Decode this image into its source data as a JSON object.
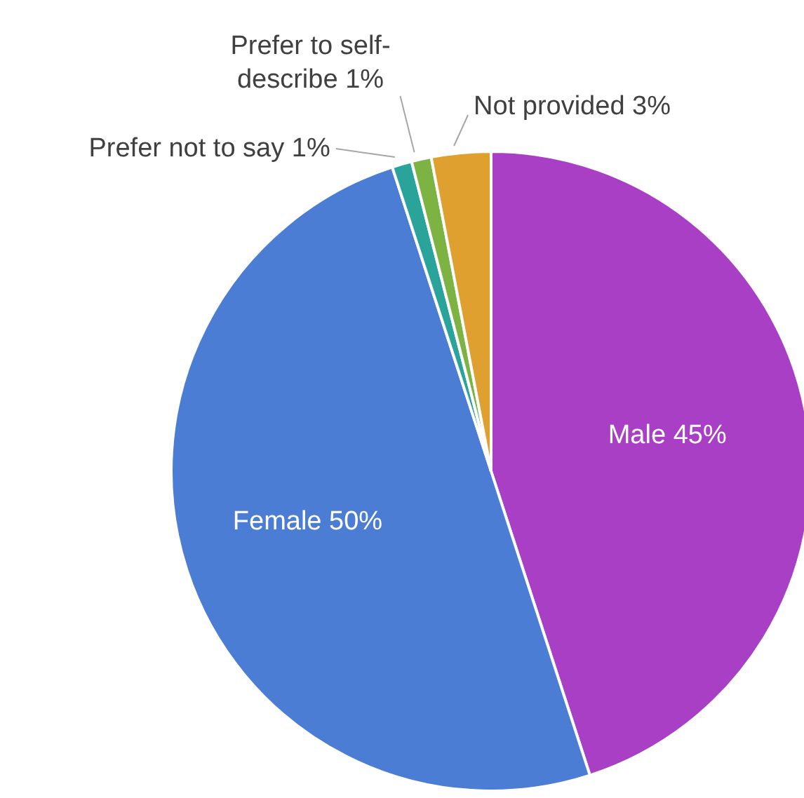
{
  "chart_data": {
    "type": "pie",
    "categories": [
      "Male",
      "Female",
      "Prefer not to say",
      "Prefer to self-describe",
      "Not provided"
    ],
    "values": [
      45,
      50,
      1,
      1,
      3
    ],
    "value_labels": [
      "45%",
      "50%",
      "1%",
      "1%",
      "3%"
    ],
    "colors": [
      "#a83fc4",
      "#4a7dd3",
      "#2aa39b",
      "#7cb342",
      "#e0a030"
    ]
  }
}
